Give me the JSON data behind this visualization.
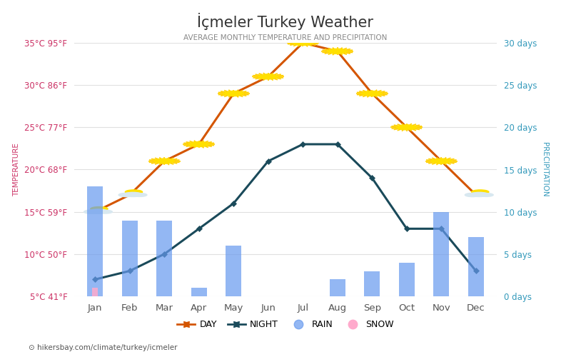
{
  "title": "İçmeler Turkey Weather",
  "subtitle": "AVERAGE MONTHLY TEMPERATURE AND PRECIPITATION",
  "months": [
    "Jan",
    "Feb",
    "Mar",
    "Apr",
    "May",
    "Jun",
    "Jul",
    "Aug",
    "Sep",
    "Oct",
    "Nov",
    "Dec"
  ],
  "day_temps": [
    15,
    17,
    21,
    23,
    29,
    31,
    35,
    34,
    29,
    25,
    21,
    17
  ],
  "night_temps": [
    7,
    8,
    10,
    13,
    16,
    21,
    23,
    23,
    19,
    13,
    13,
    8
  ],
  "rain_days": [
    13,
    9,
    9,
    1,
    6,
    0,
    0,
    2,
    3,
    4,
    10,
    7
  ],
  "snow_days": [
    1,
    0,
    0,
    0,
    0,
    0,
    0,
    0,
    0,
    0,
    0,
    0
  ],
  "temp_ylim": [
    5,
    35
  ],
  "temp_yticks": [
    5,
    10,
    15,
    20,
    25,
    30,
    35
  ],
  "temp_ytick_labels": [
    "5°C 41°F",
    "10°C 50°F",
    "15°C 59°F",
    "20°C 68°F",
    "25°C 77°F",
    "30°C 86°F",
    "35°C 95°F"
  ],
  "precip_ylim": [
    0,
    30
  ],
  "precip_yticks": [
    0,
    5,
    10,
    15,
    20,
    25,
    30
  ],
  "precip_ytick_labels": [
    "0 days",
    "5 days",
    "10 days",
    "15 days",
    "20 days",
    "25 days",
    "30 days"
  ],
  "day_color": "#d45500",
  "night_color": "#1a4a5a",
  "rain_color": "#6699ee",
  "snow_color": "#ffaacc",
  "grid_color": "#e0e0e0",
  "title_color": "#333333",
  "subtitle_color": "#888888",
  "left_tick_color": "#cc3366",
  "right_tick_color": "#3399bb",
  "temp_label_color": "#cc3366",
  "precip_label_color": "#3399bb",
  "background_color": "#ffffff",
  "url_text": "hikersbay.com/climate/turkey/icmeler",
  "bar_width": 0.45,
  "sun_months": [
    2,
    3,
    4,
    5,
    6,
    7,
    8,
    9,
    10
  ],
  "cloud_months": [
    0,
    1,
    11
  ]
}
